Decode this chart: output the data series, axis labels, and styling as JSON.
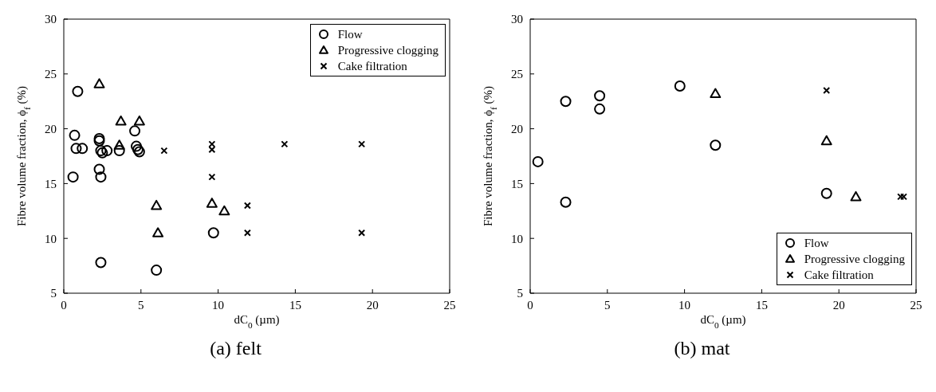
{
  "chart_data": [
    {
      "type": "scatter",
      "title": "(a) felt",
      "xlabel": "dC$_{0}$ (µm)",
      "ylabel": "Fibre volume fraction, ϕ$_{f}$ (%)",
      "xlim": [
        0,
        25
      ],
      "xticks": [
        0,
        5,
        10,
        15,
        20,
        25
      ],
      "ylim": [
        5,
        30
      ],
      "yticks": [
        5,
        10,
        15,
        20,
        25,
        30
      ],
      "grid": false,
      "legend": "top right",
      "series": [
        {
          "name": "Flow",
          "color": "#000000",
          "marker": "circle",
          "x": [
            0.7,
            0.9,
            0.8,
            1.2,
            0.6,
            2.3,
            2.3,
            2.4,
            2.5,
            2.8,
            2.3,
            2.4,
            3.6,
            4.6,
            4.7,
            4.8,
            4.9,
            2.4,
            6.0,
            9.7
          ],
          "values": [
            19.4,
            23.4,
            18.2,
            18.2,
            15.6,
            19.1,
            18.9,
            18.0,
            17.8,
            18.0,
            16.3,
            15.6,
            18.0,
            19.8,
            18.4,
            18.1,
            17.9,
            7.8,
            7.1,
            10.5
          ]
        },
        {
          "name": "Progressive clogging",
          "color": "#000000",
          "marker": "triangle",
          "x": [
            2.3,
            3.7,
            4.9,
            3.6,
            6.0,
            6.1,
            9.6,
            10.4
          ],
          "values": [
            24.1,
            20.7,
            20.7,
            18.5,
            13.0,
            10.5,
            13.2,
            12.5
          ]
        },
        {
          "name": "Cake filtration",
          "color": "#000000",
          "marker": "cross",
          "x": [
            6.5,
            9.6,
            9.6,
            9.6,
            11.9,
            11.9,
            14.3,
            19.3,
            19.3
          ],
          "values": [
            18.0,
            18.6,
            18.1,
            15.6,
            13.0,
            10.5,
            18.6,
            18.6,
            10.5
          ]
        }
      ]
    },
    {
      "type": "scatter",
      "title": "(b) mat",
      "xlabel": "dC$_{0}$ (µm)",
      "ylabel": "Fibre volume fraction, ϕ$_{f}$ (%)",
      "xlim": [
        0,
        25
      ],
      "xticks": [
        0,
        5,
        10,
        15,
        20,
        25
      ],
      "ylim": [
        5,
        30
      ],
      "yticks": [
        5,
        10,
        15,
        20,
        25,
        30
      ],
      "grid": false,
      "legend": "bottom right",
      "series": [
        {
          "name": "Flow",
          "color": "#000000",
          "marker": "circle",
          "x": [
            0.5,
            2.3,
            2.3,
            4.5,
            4.5,
            9.7,
            12.0,
            19.2
          ],
          "values": [
            17.0,
            22.5,
            13.3,
            23.0,
            21.8,
            23.9,
            18.5,
            14.1
          ]
        },
        {
          "name": "Progressive clogging",
          "color": "#000000",
          "marker": "triangle",
          "x": [
            12.0,
            19.2,
            21.1
          ],
          "values": [
            23.2,
            18.9,
            13.8
          ]
        },
        {
          "name": "Cake filtration",
          "color": "#000000",
          "marker": "cross",
          "x": [
            19.2,
            24.0,
            24.2
          ],
          "values": [
            23.5,
            13.8,
            13.8
          ]
        }
      ]
    }
  ]
}
